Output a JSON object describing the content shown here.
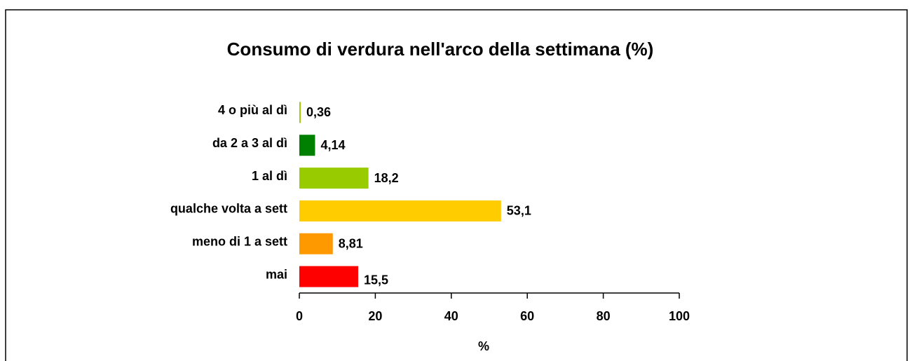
{
  "chart_data": {
    "type": "bar",
    "orientation": "horizontal",
    "title": "Consumo di verdura nell'arco della settimana  (%)",
    "categories": [
      "4 o più al dì",
      "da 2 a 3 al dì",
      "1 al dì",
      "qualche volta a sett",
      "meno di 1 a sett",
      "mai"
    ],
    "values": [
      0.36,
      4.14,
      18.2,
      53.1,
      8.81,
      15.5
    ],
    "value_labels": [
      "0,36",
      "4,14",
      "18,2",
      "53,1",
      "8,81",
      "15,5"
    ],
    "colors": [
      "#99cc00",
      "#008000",
      "#99cc00",
      "#ffcc00",
      "#ff9900",
      "#ff0000"
    ],
    "xlim": [
      0,
      100
    ],
    "xticks": [
      0,
      20,
      40,
      60,
      80,
      100
    ],
    "xlabel": "%"
  }
}
